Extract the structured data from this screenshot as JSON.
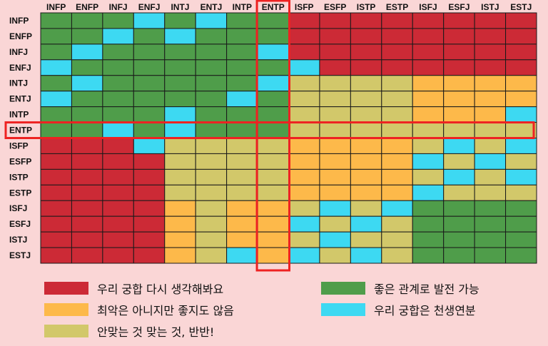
{
  "chart_data": {
    "type": "heatmap",
    "columns": [
      "INFP",
      "ENFP",
      "INFJ",
      "ENFJ",
      "INTJ",
      "ENTJ",
      "INTP",
      "ENTP",
      "ISFP",
      "ESFP",
      "ISTP",
      "ESTP",
      "ISFJ",
      "ESFJ",
      "ISTJ",
      "ESTJ"
    ],
    "rows": [
      "INFP",
      "ENFP",
      "INFJ",
      "ENFJ",
      "INTJ",
      "ENTJ",
      "INTP",
      "ENTP",
      "ISFP",
      "ESFP",
      "ISTP",
      "ESTP",
      "ISFJ",
      "ESFJ",
      "ISTJ",
      "ESTJ"
    ],
    "levels": {
      "B": {
        "label": "우리 궁합은 천생연분",
        "color": "#3dd9f2"
      },
      "G": {
        "label": "좋은 관계로 발전 가능",
        "color": "#4f9d4a"
      },
      "Y": {
        "label": "안맞는 것 맞는 것, 반반!",
        "color": "#d2c86a"
      },
      "O": {
        "label": "최악은 아니지만 좋지도 않음",
        "color": "#fdb94a"
      },
      "R": {
        "label": "우리 궁합 다시 생각해봐요",
        "color": "#cc2a36"
      }
    },
    "matrix": [
      "GGGBGBGGRRRRRRRR",
      "GGBGBGGGRRRRRRRR",
      "GBGGGGGBRRRRRRRR",
      "BGGGGGGGBRRRRRRR",
      "GBGGGGGBYYYYOOOO",
      "BGGGGGBGYYYYOOOO",
      "GGGGBGGGYYYYOOOB",
      "GGBGBGGGYYYYYYYY",
      "RRRBYYYYOOOOYBYB",
      "RRRRYYYYOOOOBYBY",
      "RRRRYYYYOOOOYBYB",
      "RRRRYYYYOOOOBYYY",
      "RRRROYOOYBYBGGGG",
      "RRRROYOOBYBYGGGG",
      "RRRROYOOYBYYGGGG",
      "RRRROYBOBYBYGGGG"
    ],
    "highlight": {
      "row": "ENTP",
      "column": "ENTP",
      "color": "#ee2222"
    },
    "legend_order": [
      "R",
      "G",
      "O",
      "B",
      "Y"
    ]
  }
}
